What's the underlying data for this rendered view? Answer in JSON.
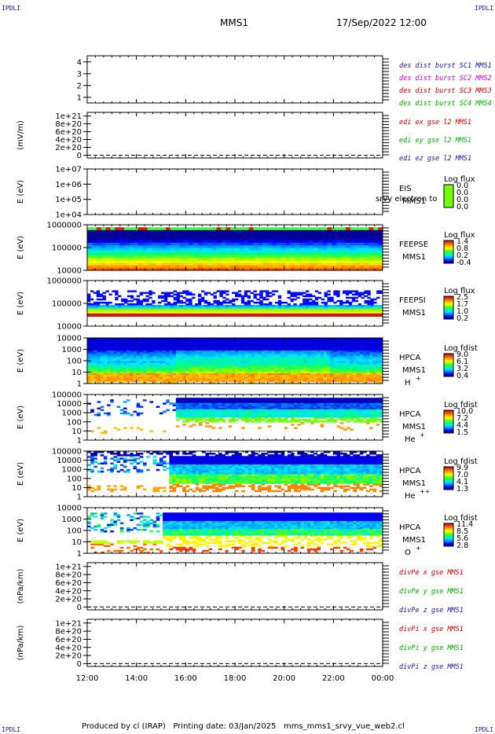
{
  "header": {
    "mission": "MMS1",
    "date_time": "17/Sep/2022 12:00"
  },
  "corners": {
    "tl": "IPDLI",
    "tr": "IPDLI",
    "bl": "IPDLI",
    "br": "IPDLI"
  },
  "footer": {
    "produced_by": "Produced by cl (IRAP)",
    "printing_date": "Printing date: 03/Jan/2025",
    "script": "mms_mms1_srvy_vue_web2.cl"
  },
  "chart_data": [
    {
      "type": "line",
      "ylabel": "",
      "ylim": [
        0.5,
        4.5
      ],
      "yticks": [
        "1",
        "2",
        "3",
        "4"
      ],
      "labels": [
        {
          "text": "des dist burst SC1 MMS1",
          "color": "#1a1aa0"
        },
        {
          "text": "des dist burst SC2 MMS2",
          "color": "#d000d0"
        },
        {
          "text": "des dist burst SC3 MMS3",
          "color": "#d00000"
        },
        {
          "text": "des dist burst SC4 MMS4",
          "color": "#00b000"
        }
      ]
    },
    {
      "type": "line",
      "ylabel": "(mV/m)",
      "ylim": [
        0,
        1.1e+21
      ],
      "yticks": [
        "0",
        "2e+20",
        "4e+20",
        "6e+20",
        "8e+20",
        "1e+21"
      ],
      "zero_line": true,
      "labels": [
        {
          "text": "edi ex gse l2 MMS1",
          "color": "#d00000"
        },
        {
          "text": "edi ey gse l2 MMS1",
          "color": "#00b000"
        },
        {
          "text": "edi ez gse l2 MMS1",
          "color": "#1a1aa0"
        }
      ]
    },
    {
      "type": "heatmap",
      "ylabel": "E (eV)",
      "log": true,
      "yticks": [
        "1e+04",
        "1e+05",
        "1e+06",
        "1e+07"
      ],
      "instrument": [
        "EIS",
        "MMS1"
      ],
      "overlay_text": "srvy electron to",
      "colorbar_title": "Log flux",
      "colorbar_ticks": [
        "0.0",
        "0.0",
        "0.0",
        "0.0"
      ],
      "empty": true
    },
    {
      "type": "heatmap",
      "ylabel": "E (eV)",
      "log": true,
      "yticks": [
        "10000",
        "100000",
        "1000000"
      ],
      "instrument": [
        "FEEPSE",
        "MMS1"
      ],
      "colorbar_title": "Log flux",
      "colorbar_ticks": [
        "1.4",
        "0.8",
        "0.2",
        "-0.4"
      ]
    },
    {
      "type": "heatmap",
      "ylabel": "E (eV)",
      "log": true,
      "yticks": [
        "10000",
        "100000",
        "1000000"
      ],
      "instrument": [
        "FEEPSI",
        "MMS1"
      ],
      "colorbar_title": "Log flux",
      "colorbar_ticks": [
        "2.5",
        "1.7",
        "1.0",
        "0.2"
      ]
    },
    {
      "type": "heatmap",
      "ylabel": "E (eV)",
      "log": true,
      "yticks": [
        "1",
        "10",
        "100",
        "1000",
        "10000"
      ],
      "instrument": [
        "HPCA",
        "MMS1"
      ],
      "species": "H",
      "species_sup": "+",
      "colorbar_title": "Log fdist",
      "colorbar_ticks": [
        "9.0",
        "6.1",
        "3.2",
        "0.4"
      ]
    },
    {
      "type": "heatmap",
      "ylabel": "E (eV)",
      "log": true,
      "yticks": [
        "1",
        "10",
        "100",
        "1000",
        "10000",
        "100000"
      ],
      "instrument": [
        "HPCA",
        "MMS1"
      ],
      "species": "He",
      "species_sup": "+",
      "colorbar_title": "Log fdist",
      "colorbar_ticks": [
        "10.0",
        "7.2",
        "4.4",
        "1.5"
      ]
    },
    {
      "type": "heatmap",
      "ylabel": "E (eV)",
      "log": true,
      "yticks": [
        "1",
        "10",
        "100",
        "1000",
        "10000",
        "100000"
      ],
      "instrument": [
        "HPCA",
        "MMS1"
      ],
      "species": "He",
      "species_sup": "++",
      "colorbar_title": "Log fdist",
      "colorbar_ticks": [
        "9.9",
        "7.0",
        "4.1",
        "1.3"
      ]
    },
    {
      "type": "heatmap",
      "ylabel": "E (eV)",
      "log": true,
      "yticks": [
        "1",
        "10",
        "100",
        "1000",
        "10000"
      ],
      "instrument": [
        "HPCA",
        "MMS1"
      ],
      "species": "O",
      "species_sup": "+",
      "colorbar_title": "Log fdist",
      "colorbar_ticks": [
        "11.4",
        "8.5",
        "5.6",
        "2.8"
      ]
    },
    {
      "type": "line",
      "ylabel": "(nPa/km)",
      "ylim": [
        0,
        1.1e+21
      ],
      "yticks": [
        "0",
        "2e+20",
        "4e+20",
        "6e+20",
        "8e+20",
        "1e+21"
      ],
      "zero_line": true,
      "labels": [
        {
          "text": "divPe x gse MMS1",
          "color": "#d00000"
        },
        {
          "text": "divPe y gse MMS1",
          "color": "#00b000"
        },
        {
          "text": "divPe z gse MMS1",
          "color": "#1a1aa0"
        }
      ]
    },
    {
      "type": "line",
      "ylabel": "(nPa/km)",
      "ylim": [
        0,
        1.1e+21
      ],
      "yticks": [
        "0",
        "2e+20",
        "4e+20",
        "6e+20",
        "8e+20",
        "1e+21"
      ],
      "zero_line": true,
      "labels": [
        {
          "text": "divPi x gse MMS1",
          "color": "#d00000"
        },
        {
          "text": "divPi y gse MMS1",
          "color": "#00b000"
        },
        {
          "text": "divPi z gse MMS1",
          "color": "#1a1aa0"
        }
      ]
    }
  ],
  "time_axis": {
    "ticks": [
      "12:00",
      "14:00",
      "16:00",
      "18:00",
      "20:00",
      "22:00",
      "00:00"
    ]
  }
}
